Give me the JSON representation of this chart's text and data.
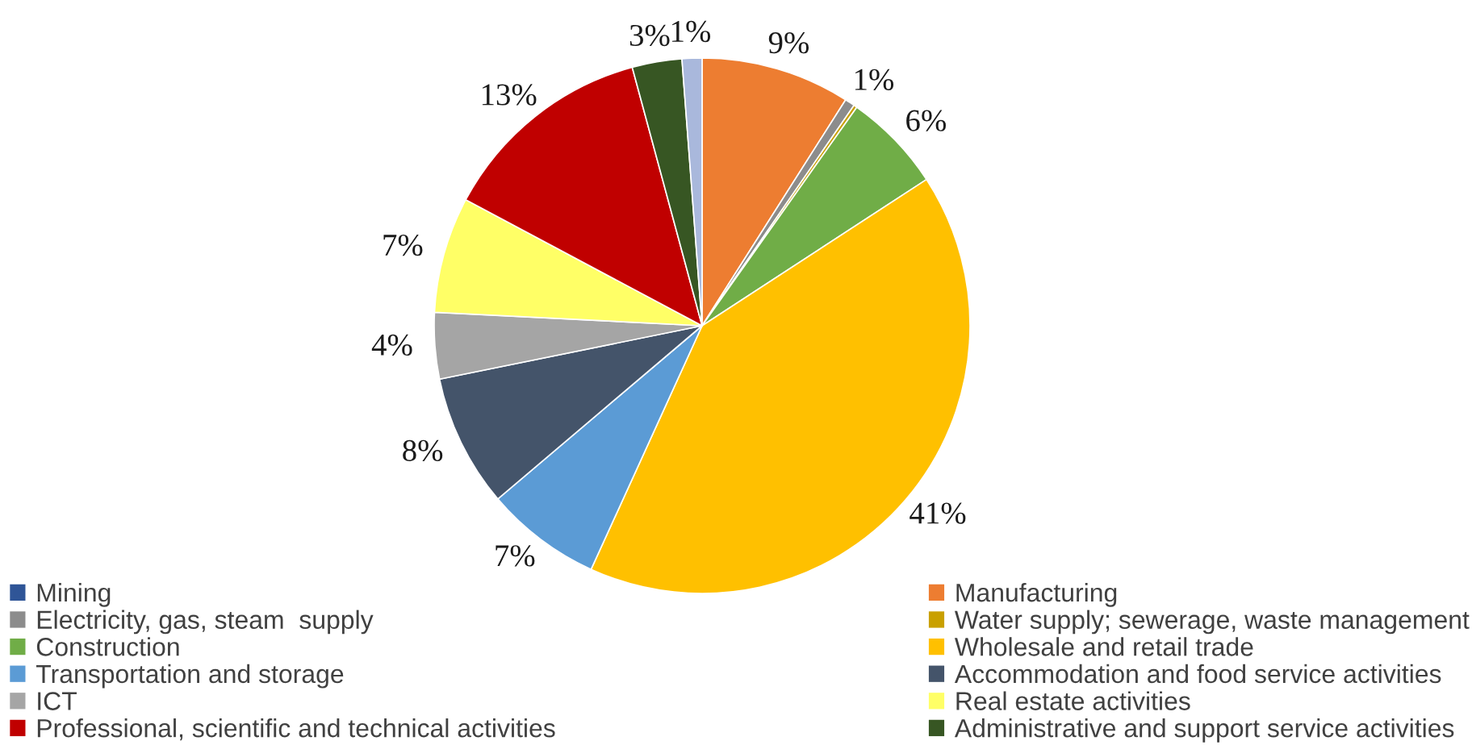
{
  "chart_data": {
    "type": "pie",
    "categories": [
      "Mining",
      "Manufacturing",
      "Electricity, gas, steam  supply",
      "Water supply; sewerage, waste management",
      "Construction",
      "Wholesale and retail trade",
      "Transportation and storage",
      "Accommodation and food service activities",
      "ICT",
      "Real estate activities",
      "Professional, scientific and technical activities",
      "Administrative and support service activities",
      null
    ],
    "values": [
      0,
      9,
      0.6,
      0.2,
      6,
      41,
      7,
      8,
      4,
      7,
      13,
      3,
      1.2
    ],
    "value_labels": [
      null,
      "9%",
      "1%",
      null,
      "6%",
      "41%",
      "7%",
      "8%",
      "4%",
      "7%",
      "13%",
      "3%",
      "1%"
    ],
    "colors": [
      "#2f5597",
      "#ed7d31",
      "#8c8c8c",
      "#c9a000",
      "#70ad47",
      "#ffc000",
      "#5b9bd5",
      "#44546a",
      "#a5a5a5",
      "#ffff66",
      "#c00000",
      "#375623",
      "#a9b8dc"
    ],
    "legend": "bottom"
  }
}
